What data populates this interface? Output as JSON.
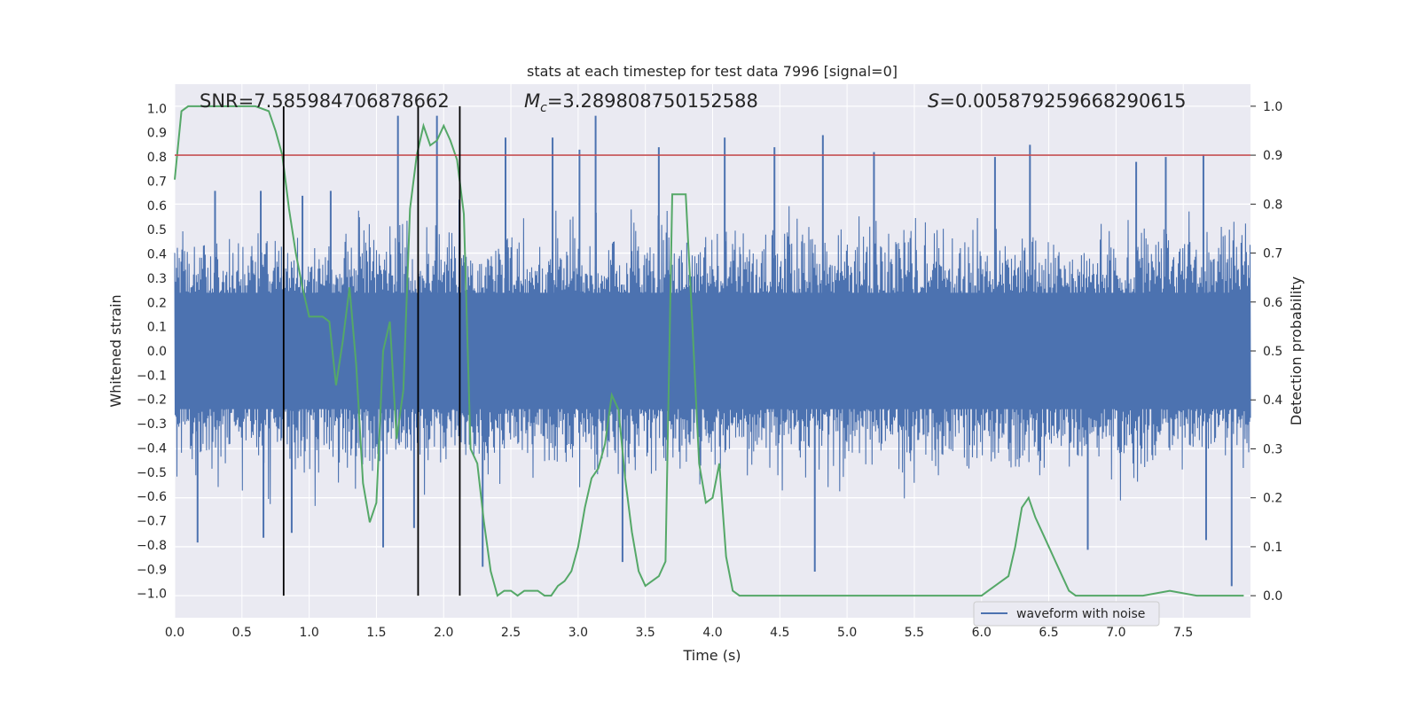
{
  "chart_data": {
    "type": "line",
    "title": "stats at each timestep for test data 7996 [signal=0]",
    "xlabel": "Time (s)",
    "ylabel": "Whitened strain",
    "y2label": "Detection probability",
    "xlim": [
      0.0,
      8.0
    ],
    "ylim": [
      -1.1,
      1.1
    ],
    "y2lim": [
      -0.045,
      1.045
    ],
    "xticks": [
      "0.0",
      "0.5",
      "1.0",
      "1.5",
      "2.0",
      "2.5",
      "3.0",
      "3.5",
      "4.0",
      "4.5",
      "5.0",
      "5.5",
      "6.0",
      "6.5",
      "7.0",
      "7.5"
    ],
    "yticks": [
      "1.0",
      "0.9",
      "0.8",
      "0.7",
      "0.6",
      "0.5",
      "0.4",
      "0.3",
      "0.2",
      "0.1",
      "0.0",
      "-0.1",
      "-0.2",
      "-0.3",
      "-0.4",
      "-0.5",
      "-0.6",
      "-0.7",
      "-0.8",
      "-0.9",
      "-1.0"
    ],
    "y2ticks": [
      "1.0",
      "0.9",
      "0.8",
      "0.7",
      "0.6",
      "0.5",
      "0.4",
      "0.3",
      "0.2",
      "0.1",
      "0.0"
    ],
    "grid": true,
    "legend": {
      "placement": "lower-right",
      "entries": [
        "waveform with noise"
      ]
    },
    "annotations": {
      "snr": "SNR=7.585984706878662",
      "mc_prefix": "M",
      "mc_sub": "c",
      "mc_value": "=3.289808750152588",
      "s_prefix": "S",
      "s_value": "=0.005879259668290615"
    },
    "threshold": 0.9,
    "vertical_markers": [
      0.81,
      1.81,
      2.12
    ],
    "series": [
      {
        "name": "waveform with noise",
        "kind": "noisy_strain",
        "typical_envelope": 0.5,
        "spikes_up": [
          [
            0.3,
            0.66
          ],
          [
            0.64,
            0.66
          ],
          [
            0.95,
            0.64
          ],
          [
            1.16,
            0.66
          ],
          [
            1.66,
            0.97
          ],
          [
            1.95,
            0.97
          ],
          [
            2.46,
            0.88
          ],
          [
            2.81,
            0.88
          ],
          [
            3.01,
            0.83
          ],
          [
            3.13,
            0.97
          ],
          [
            3.6,
            0.84
          ],
          [
            4.09,
            0.88
          ],
          [
            4.46,
            0.84
          ],
          [
            4.82,
            0.89
          ],
          [
            5.2,
            0.82
          ],
          [
            6.1,
            0.8
          ],
          [
            6.36,
            0.85
          ],
          [
            7.15,
            0.78
          ],
          [
            7.37,
            0.8
          ],
          [
            7.65,
            0.81
          ]
        ],
        "spikes_down": [
          [
            0.17,
            -0.79
          ],
          [
            0.66,
            -0.77
          ],
          [
            0.87,
            -0.75
          ],
          [
            1.55,
            -0.81
          ],
          [
            1.78,
            -0.73
          ],
          [
            2.29,
            -0.89
          ],
          [
            3.33,
            -0.87
          ],
          [
            4.76,
            -0.91
          ],
          [
            6.79,
            -0.82
          ],
          [
            7.67,
            -0.78
          ],
          [
            7.86,
            -0.97
          ]
        ]
      },
      {
        "name": "",
        "kind": "detection_probability",
        "x": [
          0.0,
          0.05,
          0.1,
          0.2,
          0.3,
          0.4,
          0.5,
          0.6,
          0.7,
          0.75,
          0.8,
          0.85,
          0.9,
          0.95,
          1.0,
          1.05,
          1.1,
          1.15,
          1.2,
          1.25,
          1.3,
          1.35,
          1.4,
          1.45,
          1.5,
          1.55,
          1.6,
          1.65,
          1.7,
          1.75,
          1.8,
          1.85,
          1.9,
          1.95,
          2.0,
          2.05,
          2.1,
          2.15,
          2.2,
          2.25,
          2.3,
          2.35,
          2.4,
          2.45,
          2.5,
          2.55,
          2.6,
          2.65,
          2.7,
          2.75,
          2.8,
          2.85,
          2.9,
          2.95,
          3.0,
          3.05,
          3.1,
          3.15,
          3.2,
          3.25,
          3.3,
          3.35,
          3.4,
          3.45,
          3.5,
          3.55,
          3.6,
          3.65,
          3.7,
          3.75,
          3.8,
          3.85,
          3.9,
          3.95,
          4.0,
          4.05,
          4.1,
          4.15,
          4.2,
          4.3,
          4.4,
          4.5,
          4.6,
          4.7,
          4.8,
          4.9,
          5.0,
          5.2,
          5.4,
          5.6,
          5.8,
          6.0,
          6.05,
          6.1,
          6.15,
          6.2,
          6.25,
          6.3,
          6.35,
          6.4,
          6.45,
          6.5,
          6.55,
          6.6,
          6.65,
          6.7,
          6.75,
          6.8,
          6.9,
          7.0,
          7.2,
          7.4,
          7.6,
          7.7,
          7.8,
          7.9,
          7.95
        ],
        "y": [
          0.85,
          0.99,
          1.0,
          1.0,
          1.0,
          1.0,
          1.0,
          1.0,
          0.99,
          0.95,
          0.9,
          0.79,
          0.7,
          0.63,
          0.57,
          0.57,
          0.57,
          0.56,
          0.43,
          0.52,
          0.63,
          0.47,
          0.23,
          0.15,
          0.19,
          0.5,
          0.56,
          0.32,
          0.42,
          0.79,
          0.9,
          0.96,
          0.92,
          0.93,
          0.96,
          0.93,
          0.89,
          0.78,
          0.3,
          0.27,
          0.15,
          0.05,
          0.0,
          0.01,
          0.01,
          0.0,
          0.01,
          0.01,
          0.01,
          0.0,
          0.0,
          0.02,
          0.03,
          0.05,
          0.1,
          0.18,
          0.24,
          0.26,
          0.31,
          0.41,
          0.38,
          0.24,
          0.13,
          0.05,
          0.02,
          0.03,
          0.04,
          0.07,
          0.82,
          0.82,
          0.82,
          0.55,
          0.27,
          0.19,
          0.2,
          0.27,
          0.08,
          0.01,
          0.0,
          0.0,
          0.0,
          0.0,
          0.0,
          0.0,
          0.0,
          0.0,
          0.0,
          0.0,
          0.0,
          0.0,
          0.0,
          0.0,
          0.01,
          0.02,
          0.03,
          0.04,
          0.1,
          0.18,
          0.2,
          0.16,
          0.13,
          0.1,
          0.07,
          0.04,
          0.01,
          0.0,
          0.0,
          0.0,
          0.0,
          0.0,
          0.0,
          0.01,
          0.0,
          0.0,
          0.0,
          0.0,
          0.0
        ]
      }
    ],
    "colors": {
      "plot_bg": "#eaeaf2",
      "grid": "#ffffff",
      "strain": "#4c72b0",
      "probability": "#55a868",
      "threshold": "#c44e52",
      "markers": "#000000"
    }
  }
}
